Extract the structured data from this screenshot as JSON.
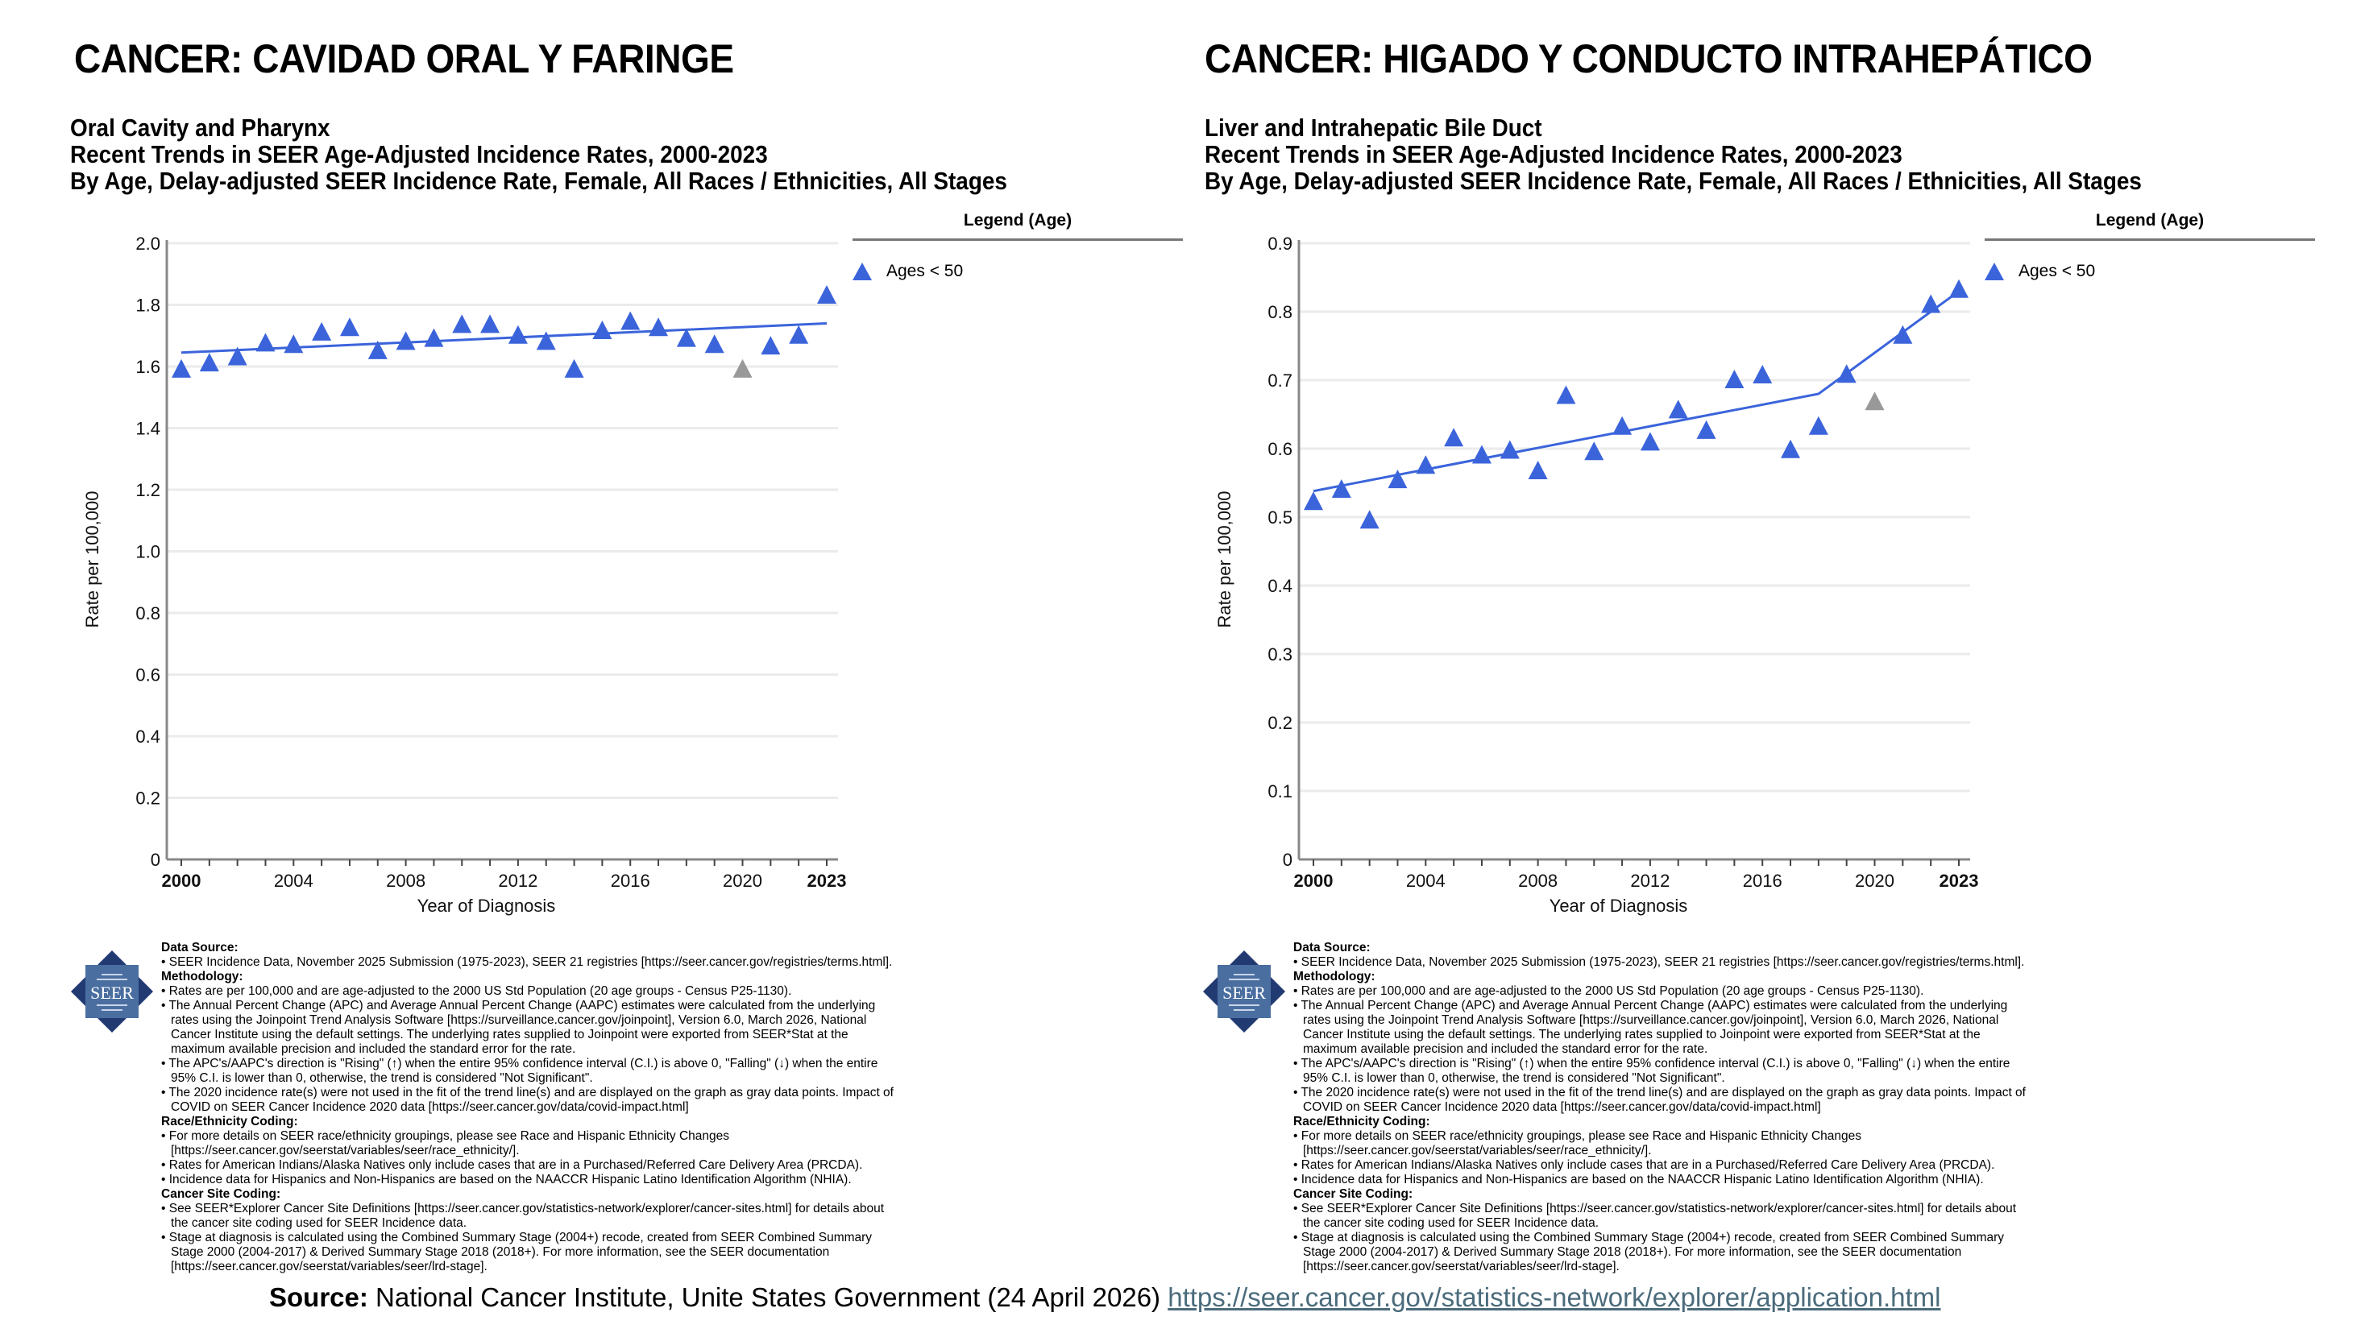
{
  "chart_data": [
    {
      "type": "scatter",
      "heading": "CANCER: CAVIDAD ORAL Y FARINGE",
      "title": "Oral Cavity and Pharynx",
      "subtitle": "Recent Trends in SEER Age-Adjusted Incidence Rates, 2000-2023",
      "subtitle2": "By Age, Delay-adjusted SEER Incidence Rate, Female, All Races / Ethnicities, All Stages",
      "xlabel": "Year of Diagnosis",
      "ylabel": "Rate per 100,000",
      "xlim": [
        2000,
        2023
      ],
      "ylim": [
        0,
        2.0
      ],
      "y_ticks": [
        "0",
        "0.2",
        "0.4",
        "0.6",
        "0.8",
        "1.0",
        "1.2",
        "1.4",
        "1.6",
        "1.8",
        "2.0"
      ],
      "y_tick_values": [
        0,
        0.2,
        0.4,
        0.6,
        0.8,
        1.0,
        1.2,
        1.4,
        1.6,
        1.8,
        2.0
      ],
      "x_ticks": [
        "2000",
        "2004",
        "2008",
        "2012",
        "2016",
        "2020",
        "2023"
      ],
      "x_tick_values": [
        2000,
        2004,
        2008,
        2012,
        2016,
        2020,
        2023
      ],
      "grid": true,
      "legend": {
        "title": "Legend (Age)",
        "position": "right",
        "entries": [
          "Ages < 50"
        ]
      },
      "series": [
        {
          "name": "Ages < 50",
          "color": "#3b64db",
          "x": [
            2000,
            2001,
            2002,
            2003,
            2004,
            2005,
            2006,
            2007,
            2008,
            2009,
            2010,
            2011,
            2012,
            2013,
            2014,
            2015,
            2016,
            2017,
            2018,
            2019,
            2020,
            2021,
            2022,
            2023
          ],
          "values": [
            1.59,
            1.61,
            1.63,
            1.675,
            1.67,
            1.71,
            1.725,
            1.65,
            1.68,
            1.69,
            1.735,
            1.735,
            1.7,
            1.68,
            1.59,
            1.715,
            1.745,
            1.725,
            1.69,
            1.67,
            1.59,
            1.665,
            1.7,
            1.83
          ],
          "excluded_x": [
            2020
          ],
          "excluded_color": "#999999"
        }
      ],
      "trend": {
        "x": [
          2000,
          2023
        ],
        "values": [
          1.645,
          1.74
        ],
        "color": "#3b64db"
      }
    },
    {
      "type": "scatter",
      "heading": "CANCER: HIGADO Y CONDUCTO INTRAHEPÁTICO",
      "title": "Liver and Intrahepatic Bile Duct",
      "subtitle": "Recent Trends in SEER Age-Adjusted Incidence Rates, 2000-2023",
      "subtitle2": "By Age, Delay-adjusted SEER Incidence Rate, Female, All Races / Ethnicities, All Stages",
      "xlabel": "Year of Diagnosis",
      "ylabel": "Rate per 100,000",
      "xlim": [
        2000,
        2023
      ],
      "ylim": [
        0,
        0.9
      ],
      "y_ticks": [
        "0",
        "0.1",
        "0.2",
        "0.3",
        "0.4",
        "0.5",
        "0.6",
        "0.7",
        "0.8",
        "0.9"
      ],
      "y_tick_values": [
        0,
        0.1,
        0.2,
        0.3,
        0.4,
        0.5,
        0.6,
        0.7,
        0.8,
        0.9
      ],
      "x_ticks": [
        "2000",
        "2004",
        "2008",
        "2012",
        "2016",
        "2020",
        "2023"
      ],
      "x_tick_values": [
        2000,
        2004,
        2008,
        2012,
        2016,
        2020,
        2023
      ],
      "grid": true,
      "legend": {
        "title": "Legend (Age)",
        "position": "right",
        "entries": [
          "Ages < 50"
        ]
      },
      "series": [
        {
          "name": "Ages < 50",
          "color": "#3b64db",
          "x": [
            2000,
            2001,
            2002,
            2003,
            2004,
            2005,
            2006,
            2007,
            2008,
            2009,
            2010,
            2011,
            2012,
            2013,
            2014,
            2015,
            2016,
            2017,
            2018,
            2019,
            2020,
            2021,
            2022,
            2023
          ],
          "values": [
            0.522,
            0.54,
            0.495,
            0.554,
            0.575,
            0.615,
            0.59,
            0.597,
            0.567,
            0.677,
            0.595,
            0.632,
            0.609,
            0.656,
            0.626,
            0.7,
            0.707,
            0.598,
            0.632,
            0.708,
            0.668,
            0.765,
            0.81,
            0.832
          ],
          "excluded_x": [
            2020
          ],
          "excluded_color": "#999999"
        }
      ],
      "trend": {
        "x": [
          2000,
          2018,
          2023
        ],
        "values": [
          0.538,
          0.68,
          0.83
        ],
        "color": "#3b64db"
      }
    }
  ],
  "notes": {
    "logo_text": "SEER",
    "lines": [
      {
        "kind": "h",
        "text": "Data Source:"
      },
      {
        "kind": "b",
        "text": "• SEER Incidence Data, November 2025 Submission (1975-2023), SEER 21 registries [https://seer.cancer.gov/registries/terms.html]."
      },
      {
        "kind": "h",
        "text": "Methodology:"
      },
      {
        "kind": "b",
        "text": "• Rates are per 100,000 and are age-adjusted to the 2000 US Std Population (20 age groups - Census P25-1130)."
      },
      {
        "kind": "b",
        "text": "• The Annual Percent Change (APC) and Average Annual Percent Change (AAPC) estimates were calculated from the underlying"
      },
      {
        "kind": "c",
        "text": "rates using the Joinpoint Trend Analysis Software [https://surveillance.cancer.gov/joinpoint], Version 6.0, March 2026, National"
      },
      {
        "kind": "c",
        "text": "Cancer Institute using the default settings. The underlying rates supplied to Joinpoint were exported from SEER*Stat at the"
      },
      {
        "kind": "c",
        "text": "maximum available precision and included the standard error for the rate."
      },
      {
        "kind": "b",
        "text": "• The APC's/AAPC's direction is \"Rising\" (↑) when the entire 95% confidence interval (C.I.) is above 0, \"Falling\" (↓) when the entire"
      },
      {
        "kind": "c",
        "text": "95% C.I. is lower than 0, otherwise, the trend is considered \"Not Significant\"."
      },
      {
        "kind": "b",
        "text": "• The 2020 incidence rate(s) were not used in the fit of the trend line(s) and are displayed on the graph as gray data points. Impact of"
      },
      {
        "kind": "c",
        "text": "COVID on SEER Cancer Incidence 2020 data [https://seer.cancer.gov/data/covid-impact.html]"
      },
      {
        "kind": "h",
        "text": "Race/Ethnicity Coding:"
      },
      {
        "kind": "b",
        "text": "• For more details on SEER race/ethnicity groupings, please see Race and Hispanic Ethnicity Changes"
      },
      {
        "kind": "c",
        "text": "[https://seer.cancer.gov/seerstat/variables/seer/race_ethnicity/]."
      },
      {
        "kind": "b",
        "text": "• Rates for American Indians/Alaska Natives only include cases that are in a Purchased/Referred Care Delivery Area (PRCDA)."
      },
      {
        "kind": "b",
        "text": "• Incidence data for Hispanics and Non-Hispanics are based on the NAACCR Hispanic Latino Identification Algorithm (NHIA)."
      },
      {
        "kind": "h",
        "text": "Cancer Site Coding:"
      },
      {
        "kind": "b",
        "text": "• See SEER*Explorer Cancer Site Definitions [https://seer.cancer.gov/statistics-network/explorer/cancer-sites.html] for details about"
      },
      {
        "kind": "c",
        "text": "the cancer site coding used for SEER Incidence data."
      },
      {
        "kind": "b",
        "text": "• Stage at diagnosis is calculated using the Combined Summary Stage (2004+) recode, created from SEER Combined Summary"
      },
      {
        "kind": "c",
        "text": "Stage 2000 (2004-2017) & Derived Summary Stage 2018 (2018+).  For more information, see the SEER documentation"
      },
      {
        "kind": "c",
        "text": "[https://seer.cancer.gov/seerstat/variables/seer/lrd-stage]."
      }
    ]
  },
  "source": {
    "label": "Source:",
    "text": " National Cancer Institute, Unite States Government (24 April 2026) ",
    "link": "https://seer.cancer.gov/statistics-network/explorer/application.html"
  },
  "colors": {
    "point": "#3b64db",
    "excluded_point": "#999999",
    "trend": "#3b64db",
    "grid": "#ebebeb",
    "axis": "#888888",
    "link": "#4a6b7c",
    "logo": "#4a6ea0",
    "logo_dark": "#223a72"
  }
}
